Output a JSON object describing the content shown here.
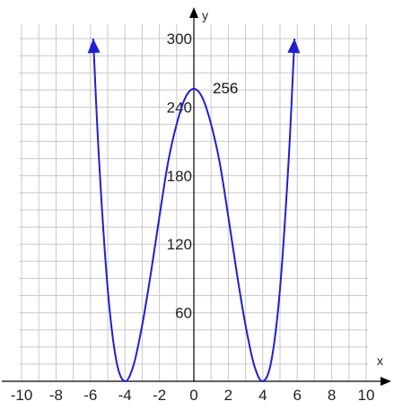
{
  "chart_data": {
    "type": "line",
    "title": "",
    "xlabel": "x",
    "ylabel": "y",
    "xlim": [
      -10,
      10
    ],
    "ylim": [
      0,
      300
    ],
    "x_ticks": [
      -10,
      -8,
      -6,
      -4,
      -2,
      0,
      2,
      4,
      6,
      8,
      10
    ],
    "x_tick_labels": [
      "-10",
      "-8",
      "-6",
      "-4",
      "-2",
      "0",
      "2",
      "4",
      "6",
      "8",
      "10"
    ],
    "y_ticks": [
      60,
      120,
      180,
      240,
      300
    ],
    "y_tick_labels": [
      "60",
      "120",
      "180",
      "240",
      "300"
    ],
    "grid": true,
    "series": [
      {
        "color": "#1f1fd1",
        "x": [
          -5.84,
          -5.5,
          -5,
          -4.5,
          -4,
          -3.5,
          -3,
          -2.5,
          -2,
          -1.5,
          -1,
          -0.5,
          0,
          0.5,
          1,
          1.5,
          2,
          2.5,
          3,
          3.5,
          4,
          4.5,
          5,
          5.5,
          5.84
        ],
        "y": [
          300,
          193.2,
          81,
          18.1,
          0,
          14.1,
          49,
          94.1,
          144,
          191.4,
          225,
          248.1,
          256,
          248.1,
          225,
          191.4,
          144,
          94.1,
          49,
          14.1,
          0,
          18.1,
          81,
          193.2,
          300
        ],
        "arrow_ends": true
      }
    ],
    "annotations": [
      {
        "text": "256",
        "x": 0,
        "y": 256
      }
    ]
  }
}
